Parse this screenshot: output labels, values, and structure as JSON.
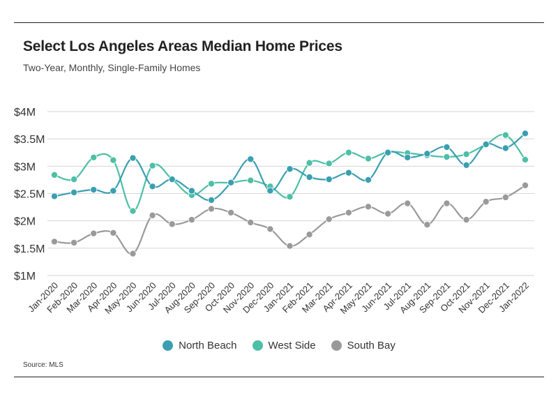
{
  "title": "Select Los Angeles Areas Median Home Prices",
  "subtitle": "Two-Year, Monthly, Single-Family Homes",
  "source": "Source:  MLS",
  "colors": {
    "north_beach": "#3a9fb0",
    "west_side": "#4dbfa6",
    "south_bay": "#9a9a9a",
    "grid": "#d6d6d6"
  },
  "chart_data": {
    "type": "line",
    "title": "Select Los Angeles Areas Median Home Prices",
    "subtitle": "Two-Year, Monthly, Single-Family Homes",
    "xlabel": "",
    "ylabel": "",
    "ylim": [
      1000000,
      4000000
    ],
    "yticks": [
      1000000,
      1500000,
      2000000,
      2500000,
      3000000,
      3500000,
      4000000
    ],
    "ytick_labels": [
      "$1M",
      "$1.5M",
      "$2M",
      "$2.5M",
      "$3M",
      "$3.5M",
      "$4M"
    ],
    "grid": true,
    "legend_position": "bottom",
    "categories": [
      "Jan-2020",
      "Feb-2020",
      "Mar-2020",
      "Apr-2020",
      "May-2020",
      "Jun-2020",
      "Jul-2020",
      "Aug-2020",
      "Sep-2020",
      "Oct-2020",
      "Nov-2020",
      "Dec-2020",
      "Jan-2021",
      "Feb-2021",
      "Mar-2021",
      "Apr-2021",
      "May-2021",
      "Jun-2021",
      "Jul-2021",
      "Aug-2021",
      "Sep-2021",
      "Oct-2021",
      "Nov-2021",
      "Dec-2021",
      "Jan-2022"
    ],
    "series": [
      {
        "name": "North Beach",
        "color": "#3a9fb0",
        "values": [
          2450000,
          2520000,
          2570000,
          2550000,
          3150000,
          2630000,
          2760000,
          2550000,
          2380000,
          2700000,
          3130000,
          2550000,
          2950000,
          2800000,
          2760000,
          2880000,
          2750000,
          3250000,
          3160000,
          3230000,
          3350000,
          3020000,
          3400000,
          3330000,
          3600000
        ]
      },
      {
        "name": "West Side",
        "color": "#4dbfa6",
        "values": [
          2840000,
          2760000,
          3160000,
          3110000,
          2180000,
          3010000,
          2760000,
          2470000,
          2680000,
          2700000,
          2740000,
          2630000,
          2440000,
          3060000,
          3050000,
          3250000,
          3140000,
          3260000,
          3240000,
          3200000,
          3170000,
          3220000,
          3400000,
          3570000,
          3120000
        ]
      },
      {
        "name": "South Bay",
        "color": "#9a9a9a",
        "values": [
          1620000,
          1600000,
          1770000,
          1780000,
          1400000,
          2100000,
          1940000,
          2020000,
          2220000,
          2150000,
          1970000,
          1850000,
          1540000,
          1750000,
          2030000,
          2150000,
          2260000,
          2130000,
          2320000,
          1930000,
          2320000,
          2020000,
          2350000,
          2430000,
          2650000
        ]
      }
    ]
  }
}
